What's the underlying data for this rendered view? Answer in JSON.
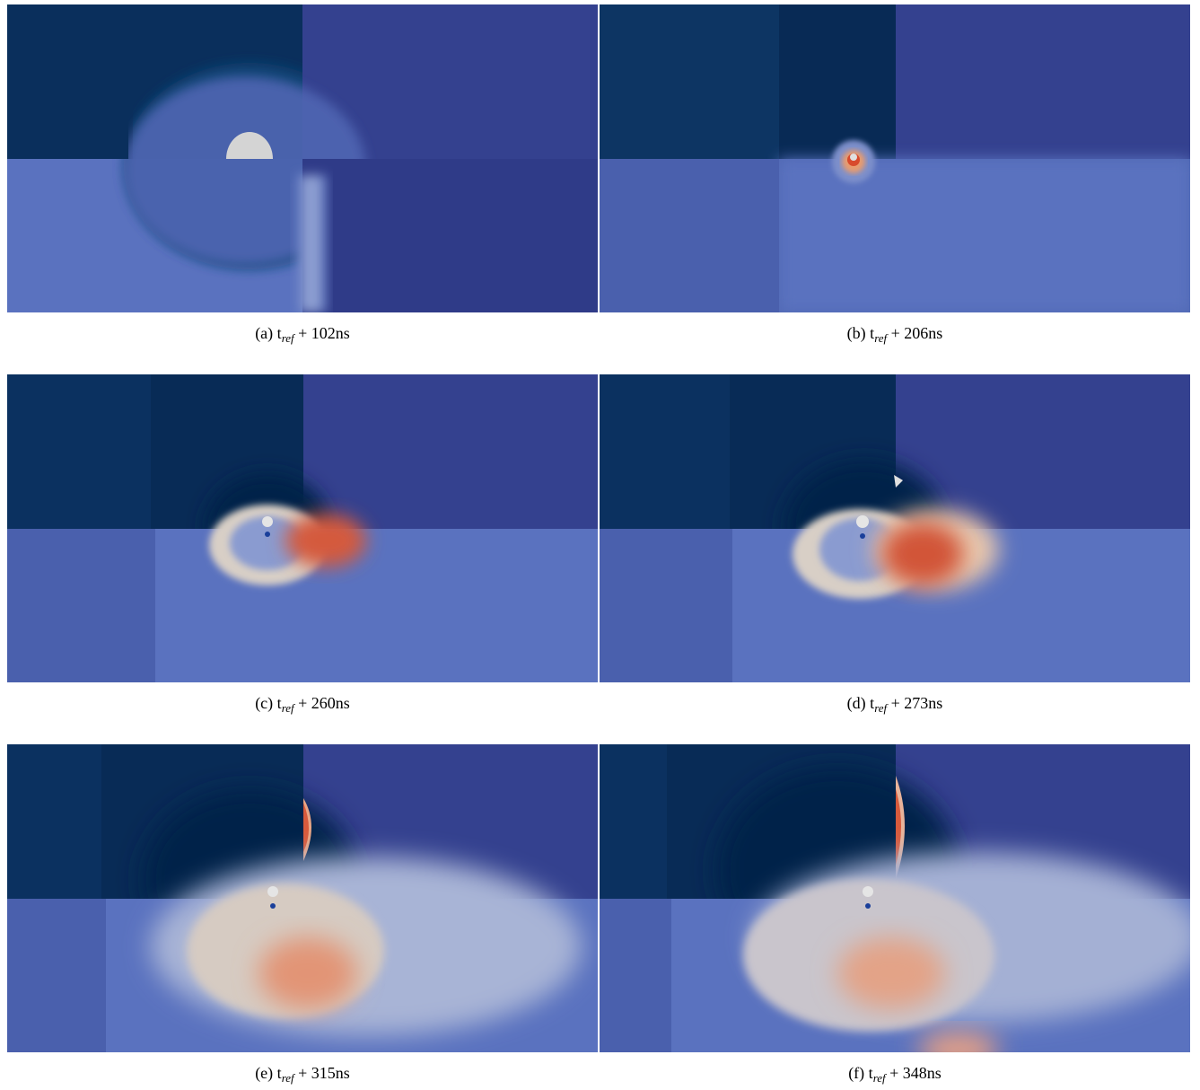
{
  "figure": {
    "panels": [
      {
        "letter": "(a)",
        "t": "t",
        "sub": "ref",
        "offset": "+ 102ns"
      },
      {
        "letter": "(b)",
        "t": "t",
        "sub": "ref",
        "offset": "+ 206ns"
      },
      {
        "letter": "(c)",
        "t": "t",
        "sub": "ref",
        "offset": "+ 260ns"
      },
      {
        "letter": "(d)",
        "t": "t",
        "sub": "ref",
        "offset": "+ 273ns"
      },
      {
        "letter": "(e)",
        "t": "t",
        "sub": "ref",
        "offset": "+ 315ns"
      },
      {
        "letter": "(f)",
        "t": "t",
        "sub": "ref",
        "offset": "+ 348ns"
      }
    ],
    "colors": {
      "dark_upper": "#0a2f5c",
      "purple": "#34418f",
      "lower_light": "#5a72bf",
      "droplet": "#d4d4d4",
      "hot": "#d9553a",
      "warm": "#e8c7ad"
    }
  }
}
